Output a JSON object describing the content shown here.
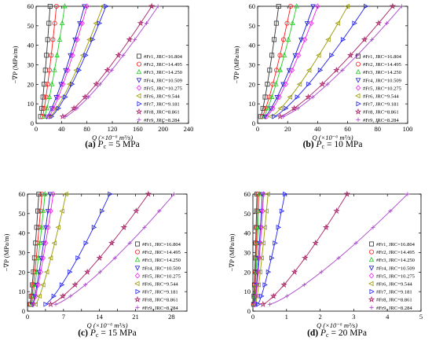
{
  "figure": {
    "series_labels": [
      "#Fr1, JRC=16.804",
      "#Fr2, JRC=14.495",
      "#Fr3, JRC=14.250",
      "#Fr4, JRC=10.509",
      "#Fr5, JRC=10.275",
      "#Fr6, JRC=9.544",
      "#Fr7, JRC=9.181",
      "#Fr8, JRC=8.861",
      "#Fr9, JRC=8.284"
    ],
    "series_colors": [
      "#333333",
      "#ff1a1a",
      "#22cc22",
      "#1a1acc",
      "#ee22ee",
      "#999900",
      "#2222ee",
      "#aa2266",
      "#aa44cc"
    ],
    "series_markers": [
      "square",
      "circle",
      "triangle-up",
      "triangle-down",
      "diamond",
      "triangle-left",
      "triangle-right",
      "star",
      "plus"
    ],
    "ylabel": "−∇P (MPa/m)",
    "xlabel": "Q (×10⁻⁶ m³/s)"
  },
  "chart_data": [
    {
      "type": "line",
      "panel_letter": "(a)",
      "panel_caption": "Pc = 5 MPa",
      "caption_symbol": "P",
      "caption_sub": "c",
      "caption_rest": " = 5 MPa",
      "xlim": [
        0,
        240
      ],
      "ylim": [
        0,
        60
      ],
      "xticks": [
        0,
        40,
        80,
        120,
        160,
        200,
        240
      ],
      "yticks": [
        0,
        10,
        20,
        30,
        40,
        50,
        60
      ],
      "series": [
        {
          "name": "#Fr1, JRC=16.804",
          "x": [
            7,
            22
          ],
          "y": [
            3.5,
            60
          ]
        },
        {
          "name": "#Fr2, JRC=14.495",
          "x": [
            10,
            32
          ],
          "y": [
            3.5,
            60
          ]
        },
        {
          "name": "#Fr3, JRC=14.250",
          "x": [
            13,
            45
          ],
          "y": [
            3.5,
            60
          ]
        },
        {
          "name": "#Fr4, JRC=10.509",
          "x": [
            17,
            76
          ],
          "y": [
            3.5,
            60
          ]
        },
        {
          "name": "#Fr5, JRC=10.275",
          "x": [
            20,
            80
          ],
          "y": [
            3.5,
            60
          ]
        },
        {
          "name": "#Fr6, JRC=9.544",
          "x": [
            22,
            105
          ],
          "y": [
            3.5,
            60
          ]
        },
        {
          "name": "#Fr7, JRC=9.181",
          "x": [
            24,
            110
          ],
          "y": [
            3.5,
            60
          ]
        },
        {
          "name": "#Fr8, JRC=8.861",
          "x": [
            42,
            182
          ],
          "y": [
            3.5,
            60
          ]
        },
        {
          "name": "#Fr9, JRC=8.284",
          "x": [
            46,
            192
          ],
          "y": [
            3.5,
            60
          ]
        }
      ]
    },
    {
      "type": "line",
      "panel_letter": "(b)",
      "panel_caption": "Pc = 10 MPa",
      "caption_symbol": "P",
      "caption_sub": "c",
      "caption_rest": " = 10 MPa",
      "xlim": [
        0,
        100
      ],
      "ylim": [
        0,
        60
      ],
      "xticks": [
        0,
        20,
        40,
        60,
        80,
        100
      ],
      "yticks": [
        0,
        10,
        20,
        30,
        40,
        50,
        60
      ],
      "series": [
        {
          "name": "#Fr1, JRC=16.804",
          "x": [
            2,
            14
          ],
          "y": [
            3.5,
            60
          ]
        },
        {
          "name": "#Fr2, JRC=14.495",
          "x": [
            3,
            22
          ],
          "y": [
            3.5,
            60
          ]
        },
        {
          "name": "#Fr3, JRC=14.250",
          "x": [
            4,
            26
          ],
          "y": [
            3.5,
            60
          ]
        },
        {
          "name": "#Fr4, JRC=10.509",
          "x": [
            5,
            37
          ],
          "y": [
            3.5,
            60
          ]
        },
        {
          "name": "#Fr5, JRC=10.275",
          "x": [
            6,
            40
          ],
          "y": [
            3.5,
            60
          ]
        },
        {
          "name": "#Fr6, JRC=9.544",
          "x": [
            9,
            60
          ],
          "y": [
            3.5,
            60
          ]
        },
        {
          "name": "#Fr7, JRC=9.181",
          "x": [
            11,
            72
          ],
          "y": [
            3.5,
            60
          ]
        },
        {
          "name": "#Fr8, JRC=8.861",
          "x": [
            15,
            90
          ],
          "y": [
            3.5,
            60
          ]
        },
        {
          "name": "#Fr9, JRC=8.284",
          "x": [
            17,
            96
          ],
          "y": [
            3.5,
            60
          ]
        }
      ]
    },
    {
      "type": "line",
      "panel_letter": "(c)",
      "panel_caption": "Pc = 15 MPa",
      "caption_symbol": "P",
      "caption_sub": "c",
      "caption_rest": " = 15 MPa",
      "xlim": [
        0,
        31
      ],
      "ylim": [
        0,
        60
      ],
      "xticks": [
        0,
        3.5,
        7,
        10.5,
        14,
        17.5,
        21,
        24.5,
        28
      ],
      "xtick_labels": [
        "0",
        "",
        "7",
        "",
        "14",
        "",
        "21",
        "",
        "28"
      ],
      "yticks": [
        0,
        10,
        20,
        30,
        40,
        50,
        60
      ],
      "series": [
        {
          "name": "#Fr1, JRC=16.804",
          "x": [
            0.5,
            2.2
          ],
          "y": [
            3.5,
            60
          ]
        },
        {
          "name": "#Fr2, JRC=14.495",
          "x": [
            0.6,
            2.8
          ],
          "y": [
            3.5,
            60
          ]
        },
        {
          "name": "#Fr3, JRC=14.250",
          "x": [
            0.8,
            3.4
          ],
          "y": [
            3.5,
            60
          ]
        },
        {
          "name": "#Fr4, JRC=10.509",
          "x": [
            1.0,
            4.4
          ],
          "y": [
            3.5,
            60
          ]
        },
        {
          "name": "#Fr5, JRC=10.275",
          "x": [
            1.1,
            5.0
          ],
          "y": [
            3.5,
            60
          ]
        },
        {
          "name": "#Fr6, JRC=9.544",
          "x": [
            1.6,
            7.5
          ],
          "y": [
            3.5,
            60
          ]
        },
        {
          "name": "#Fr7, JRC=9.181",
          "x": [
            3.5,
            16.0
          ],
          "y": [
            3.5,
            60
          ]
        },
        {
          "name": "#Fr8, JRC=8.861",
          "x": [
            4.5,
            23.5
          ],
          "y": [
            3.5,
            60
          ]
        },
        {
          "name": "#Fr9, JRC=8.284",
          "x": [
            5.5,
            28.5
          ],
          "y": [
            3.5,
            60
          ]
        }
      ]
    },
    {
      "type": "line",
      "panel_letter": "(d)",
      "panel_caption": "Pc = 20 MPa",
      "caption_symbol": "P",
      "caption_sub": "c",
      "caption_rest": " = 20 MPa",
      "xlim": [
        0,
        5
      ],
      "ylim": [
        0,
        60
      ],
      "xticks": [
        0,
        1,
        2,
        3,
        4,
        5
      ],
      "yticks": [
        0,
        10,
        20,
        30,
        40,
        50,
        60
      ],
      "series": [
        {
          "name": "#Fr1, JRC=16.804",
          "x": [
            0.02,
            0.12
          ],
          "y": [
            3.5,
            60
          ]
        },
        {
          "name": "#Fr2, JRC=14.495",
          "x": [
            0.03,
            0.15
          ],
          "y": [
            3.5,
            60
          ]
        },
        {
          "name": "#Fr3, JRC=14.250",
          "x": [
            0.04,
            0.19
          ],
          "y": [
            3.5,
            60
          ]
        },
        {
          "name": "#Fr4, JRC=10.509",
          "x": [
            0.05,
            0.28
          ],
          "y": [
            3.5,
            60
          ]
        },
        {
          "name": "#Fr5, JRC=10.275",
          "x": [
            0.06,
            0.32
          ],
          "y": [
            3.5,
            60
          ]
        },
        {
          "name": "#Fr6, JRC=9.544",
          "x": [
            0.08,
            0.45
          ],
          "y": [
            3.5,
            60
          ]
        },
        {
          "name": "#Fr7, JRC=9.181",
          "x": [
            0.15,
            0.95
          ],
          "y": [
            3.5,
            60
          ]
        },
        {
          "name": "#Fr8, JRC=8.861",
          "x": [
            0.3,
            2.8
          ],
          "y": [
            3.5,
            60
          ]
        },
        {
          "name": "#Fr9, JRC=8.284",
          "x": [
            0.5,
            4.6
          ],
          "y": [
            3.5,
            60
          ]
        }
      ]
    }
  ]
}
